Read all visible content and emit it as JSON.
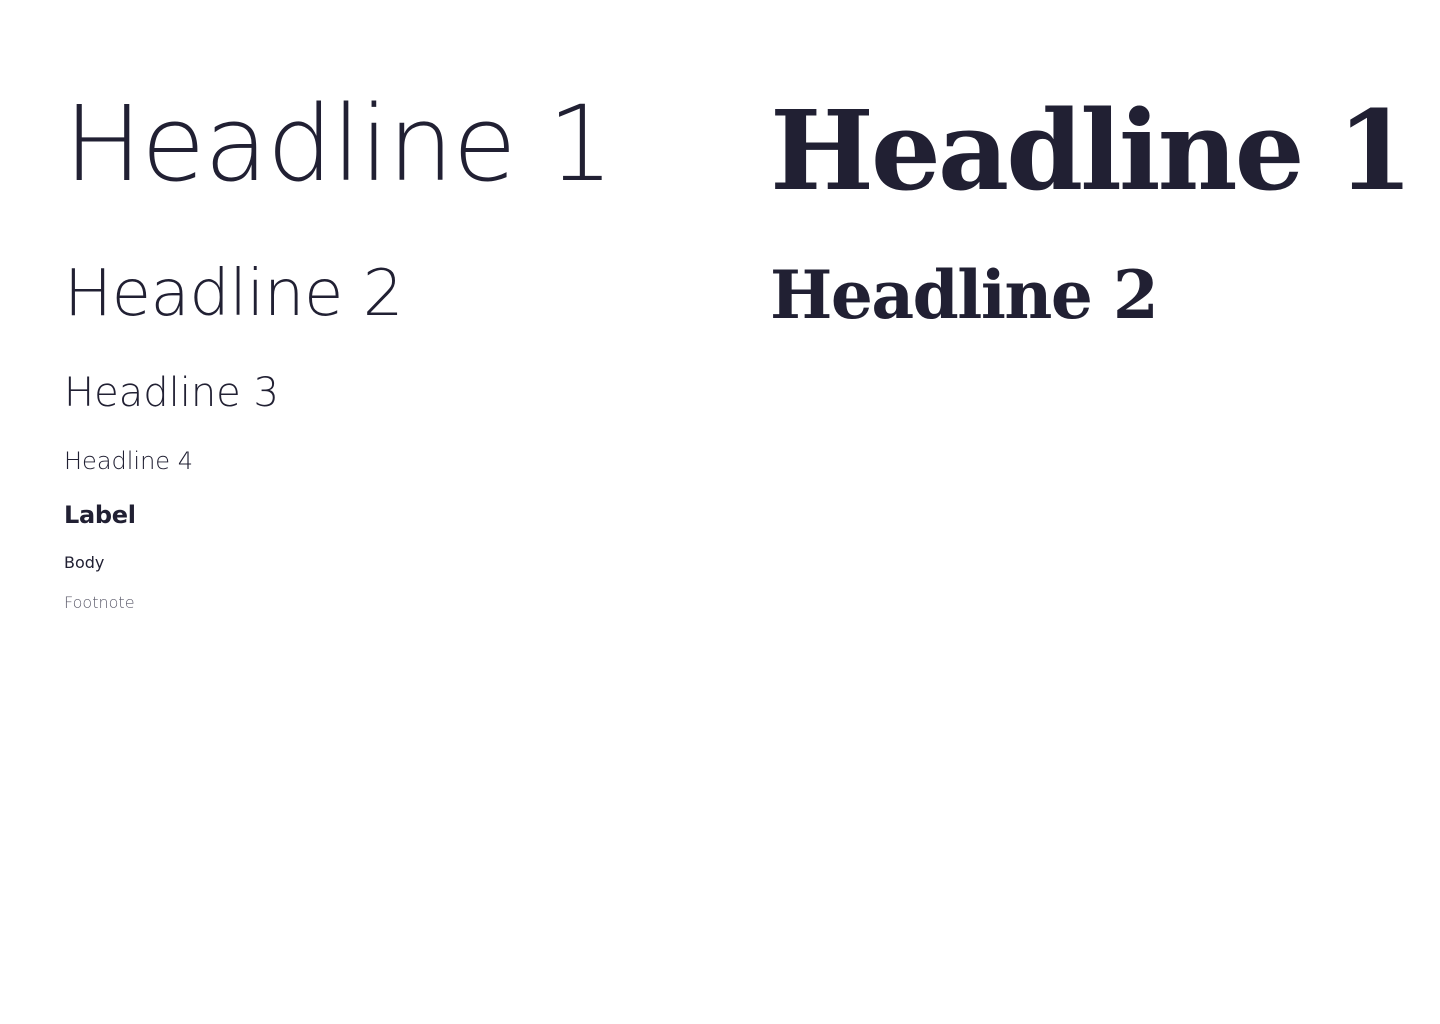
{
  "sans": {
    "headline1": "Headline 1",
    "headline2": "Headline 2",
    "headline3": "Headline 3",
    "headline4": "Headline 4",
    "label": "Label",
    "body": "Body",
    "footnote": "Footnote"
  },
  "serif": {
    "headline1": "Headline 1",
    "headline2": "Headline 2"
  },
  "colors": {
    "text": "#212033",
    "footnote": "#5c5b6b",
    "background": "#ffffff"
  }
}
